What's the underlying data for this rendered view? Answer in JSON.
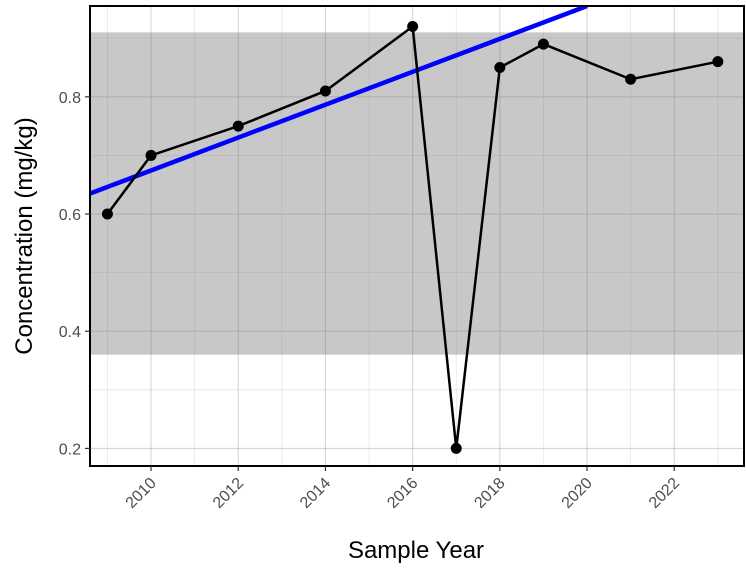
{
  "chart_data": {
    "type": "line",
    "title": "",
    "xlabel": "Sample Year",
    "ylabel": "Concentration (mg/kg)",
    "xlim": [
      2008.6,
      2023.6
    ],
    "ylim": [
      0.17,
      0.955
    ],
    "x_ticks": [
      2010,
      2012,
      2014,
      2016,
      2018,
      2020,
      2022
    ],
    "x_tick_labels": [
      "2010",
      "2012",
      "2014",
      "2016",
      "2018",
      "2020",
      "2022"
    ],
    "y_ticks": [
      0.2,
      0.4,
      0.6,
      0.8
    ],
    "y_tick_labels": [
      "0.2",
      "0.4",
      "0.6",
      "0.8"
    ],
    "grid": true,
    "shaded_band": {
      "y_min": 0.36,
      "y_max": 0.91,
      "color": "#c8c8c8"
    },
    "series": [
      {
        "x": [
          2009,
          2010,
          2012,
          2014,
          2016,
          2017,
          2018,
          2019,
          2021,
          2023
        ],
        "y": [
          0.6,
          0.7,
          0.75,
          0.81,
          0.92,
          0.2,
          0.85,
          0.89,
          0.83,
          0.86
        ],
        "color": "#000000"
      }
    ],
    "trend_line": {
      "x": [
        2008.6,
        2020.0
      ],
      "y": [
        0.635,
        0.955
      ],
      "color": "#0000ff"
    }
  }
}
